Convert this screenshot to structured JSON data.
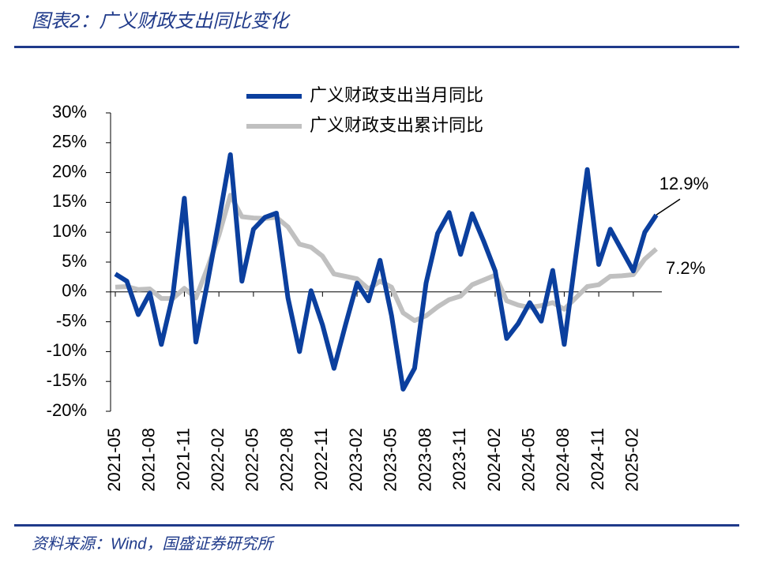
{
  "title": "图表2：广义财政支出同比变化",
  "source": "资料来源：Wind，国盛证券研究所",
  "chart_data": {
    "type": "line",
    "categories": [
      "2021-05",
      null,
      null,
      "2021-08",
      null,
      null,
      "2021-11",
      null,
      null,
      "2022-02",
      null,
      null,
      "2022-05",
      null,
      null,
      "2022-08",
      null,
      null,
      "2022-11",
      null,
      null,
      "2023-02",
      null,
      null,
      "2023-05",
      null,
      null,
      "2023-08",
      null,
      null,
      "2023-11",
      null,
      null,
      "2024-02",
      null,
      null,
      "2024-05",
      null,
      null,
      "2024-08",
      null,
      null,
      "2024-11",
      null,
      null,
      "2025-02",
      null,
      null
    ],
    "series": [
      {
        "name": "广义财政支出当月同比",
        "color": "#0b3f9e",
        "values": [
          3.0,
          1.8,
          -3.8,
          -0.2,
          -8.8,
          -0.5,
          15.7,
          -8.4,
          1.5,
          12.0,
          23.0,
          1.8,
          10.5,
          12.5,
          13.2,
          -1.0,
          -10.0,
          0.2,
          -5.5,
          -12.8,
          -5.5,
          1.5,
          -1.5,
          5.3,
          -4.0,
          -16.3,
          -12.8,
          1.5,
          9.8,
          13.3,
          6.3,
          13.1,
          8.5,
          3.5,
          -7.8,
          -5.3,
          -1.8,
          -4.9,
          3.6,
          -8.8,
          6.0,
          20.5,
          4.6,
          10.5,
          7.0,
          3.5,
          10.0,
          12.9
        ],
        "value_labels": [
          null,
          null,
          null,
          null,
          null,
          null,
          null,
          null,
          null,
          null,
          null,
          null,
          null,
          null,
          null,
          null,
          null,
          null,
          null,
          null,
          null,
          null,
          null,
          null,
          null,
          null,
          null,
          null,
          null,
          null,
          null,
          null,
          null,
          null,
          null,
          null,
          null,
          null,
          null,
          null,
          null,
          null,
          null,
          null,
          null,
          null,
          null,
          "12.9%"
        ]
      },
      {
        "name": "广义财政支出累计同比",
        "color": "#c0c0c0",
        "values": [
          0.8,
          0.9,
          0.4,
          0.5,
          -1.1,
          -1.1,
          0.6,
          -1.0,
          4.0,
          9.5,
          16.2,
          12.6,
          12.4,
          12.3,
          12.5,
          10.9,
          8.0,
          7.5,
          6.0,
          3.0,
          2.6,
          2.2,
          0.5,
          1.8,
          0.8,
          -3.5,
          -4.8,
          -4.0,
          -2.5,
          -1.3,
          -0.7,
          1.2,
          2.0,
          2.8,
          -1.5,
          -2.2,
          -2.6,
          -2.3,
          -1.8,
          -2.9,
          -1.0,
          0.9,
          1.2,
          2.6,
          2.7,
          2.9,
          5.5,
          7.2
        ],
        "value_labels": [
          null,
          null,
          null,
          null,
          null,
          null,
          null,
          null,
          null,
          null,
          null,
          null,
          null,
          null,
          null,
          null,
          null,
          null,
          null,
          null,
          null,
          null,
          null,
          null,
          null,
          null,
          null,
          null,
          null,
          null,
          null,
          null,
          null,
          null,
          null,
          null,
          null,
          null,
          null,
          null,
          null,
          null,
          null,
          null,
          null,
          null,
          null,
          "7.2%"
        ]
      }
    ],
    "ylim": [
      -20,
      30
    ],
    "yticks": [
      {
        "value": -20,
        "label": "-20%"
      },
      {
        "value": -15,
        "label": "-15%"
      },
      {
        "value": -10,
        "label": "-10%"
      },
      {
        "value": -5,
        "label": "-5%"
      },
      {
        "value": 0,
        "label": "0%"
      },
      {
        "value": 5,
        "label": "5%"
      },
      {
        "value": 10,
        "label": "10%"
      },
      {
        "value": 15,
        "label": "15%"
      },
      {
        "value": 20,
        "label": "20%"
      },
      {
        "value": 25,
        "label": "25%"
      },
      {
        "value": 30,
        "label": "30%"
      }
    ],
    "grid": false,
    "legend": "top"
  }
}
